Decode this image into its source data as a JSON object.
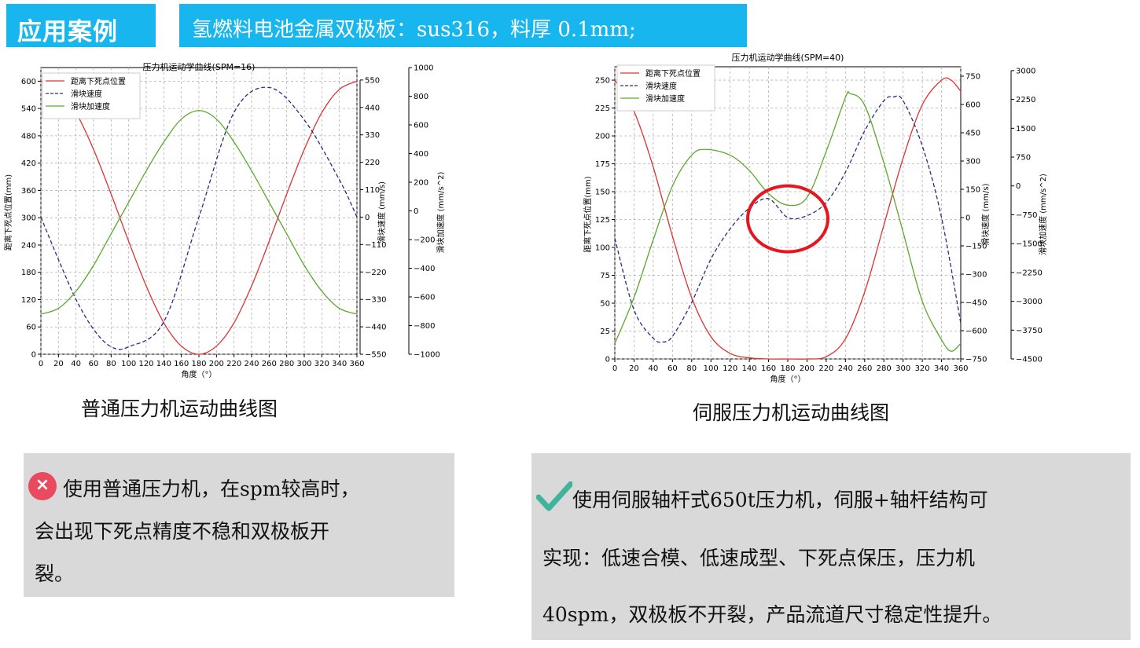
{
  "header": {
    "case_label": "应用案例",
    "title": "氢燃料电池金属双极板：sus316，料厚 0.1mm;"
  },
  "captions": {
    "left": "普通压力机运动曲线图",
    "right": "伺服压力机运动曲线图"
  },
  "notes": {
    "left_lines": [
      "使用普通压力机，在spm较高时，",
      "会出现下死点精度不稳和双极板开",
      "裂。"
    ],
    "right_lines": [
      "使用伺服轴杆式650t压力机，伺服+轴杆结构可",
      "实现：低速合模、低速成型、下死点保压，压力机",
      "40spm，双极板不开裂，产品流道尺寸稳定性提升。"
    ],
    "left_icon": "close-icon",
    "right_icon": "check-icon",
    "left_icon_glyph": "×"
  },
  "colors": {
    "accent_blue": "#17b6ef",
    "note_bg": "#d9d9d9",
    "x_icon": "#ea4a5f",
    "check_icon": "#3fb39c",
    "position_series": "#e03030",
    "velocity_series": "#2a2a8a",
    "acceleration_series": "#5aaa2a",
    "highlight_circle": "#e8141e"
  },
  "chart_data": [
    {
      "type": "line",
      "title": "压力机运动学曲线(SPM=16)",
      "xlabel": "角度（°）",
      "x_ticks": [
        0,
        20,
        40,
        60,
        80,
        100,
        120,
        140,
        160,
        180,
        200,
        220,
        240,
        260,
        280,
        300,
        320,
        340,
        360
      ],
      "xlim": [
        0,
        360
      ],
      "grid": true,
      "legend_position": "top-left",
      "axes": [
        {
          "label": "距离下死点位置(mm)",
          "ylim": [
            0,
            630
          ],
          "ticks": [
            0,
            60,
            120,
            180,
            240,
            300,
            360,
            420,
            480,
            540,
            600
          ]
        },
        {
          "label": "滑块速度 (mm/s)",
          "ylim": [
            -550,
            600
          ],
          "ticks": [
            -550,
            -440,
            -330,
            -220,
            -110,
            0,
            110,
            220,
            330,
            440,
            550
          ]
        },
        {
          "label": "滑块加速度 (mm/s^2)",
          "ylim": [
            -1000,
            1000
          ],
          "ticks": [
            -1000,
            -800,
            -600,
            -400,
            -200,
            0,
            200,
            400,
            600,
            800,
            1000
          ]
        }
      ],
      "series": [
        {
          "name": "距离下死点位置",
          "axis": 0,
          "style": "solid",
          "x": [
            0,
            20,
            40,
            60,
            80,
            100,
            120,
            140,
            160,
            180,
            200,
            220,
            240,
            260,
            280,
            300,
            320,
            340,
            360
          ],
          "values": [
            600,
            582,
            531,
            450,
            352,
            248,
            150,
            69,
            18,
            0,
            18,
            69,
            150,
            248,
            352,
            450,
            531,
            582,
            600
          ]
        },
        {
          "name": "滑块速度",
          "axis": 1,
          "style": "dashed",
          "x": [
            0,
            20,
            40,
            60,
            80,
            100,
            140,
            180,
            220,
            260,
            300,
            340,
            360
          ],
          "values": [
            0,
            -170,
            -330,
            -450,
            -520,
            -520,
            -420,
            0,
            420,
            520,
            390,
            150,
            0
          ]
        },
        {
          "name": "滑块加速度",
          "axis": 2,
          "style": "solid",
          "x": [
            0,
            20,
            40,
            60,
            80,
            100,
            120,
            140,
            160,
            180,
            200,
            220,
            240,
            260,
            280,
            300,
            320,
            340,
            360
          ],
          "values": [
            -720,
            -680,
            -560,
            -380,
            -160,
            60,
            280,
            480,
            640,
            700,
            640,
            480,
            280,
            60,
            -160,
            -380,
            -560,
            -680,
            -720
          ]
        }
      ]
    },
    {
      "type": "line",
      "title": "压力机运动学曲线(SPM=40)",
      "xlabel": "角度（°）",
      "x_ticks": [
        0,
        20,
        40,
        60,
        80,
        100,
        120,
        140,
        160,
        180,
        200,
        220,
        240,
        260,
        280,
        300,
        320,
        340,
        360
      ],
      "xlim": [
        0,
        360
      ],
      "grid": true,
      "legend_position": "top-left",
      "axes": [
        {
          "label": "距离下死点位置(mm)",
          "ylim": [
            0,
            262
          ],
          "ticks": [
            0,
            25,
            50,
            75,
            100,
            125,
            150,
            175,
            200,
            225,
            250
          ]
        },
        {
          "label": "滑块速度 (mm/s)",
          "ylim": [
            -750,
            800
          ],
          "ticks": [
            -750,
            -600,
            -450,
            -300,
            -150,
            0,
            150,
            300,
            450,
            600,
            750
          ]
        },
        {
          "label": "滑块加速度 (mm/s^2)",
          "ylim": [
            -4500,
            3100
          ],
          "ticks": [
            -4500,
            -3750,
            -3000,
            -2250,
            -1500,
            -750,
            0,
            750,
            1500,
            2250,
            3000
          ]
        }
      ],
      "series": [
        {
          "name": "距离下死点位置",
          "axis": 0,
          "style": "solid",
          "x": [
            0,
            20,
            40,
            60,
            80,
            100,
            120,
            140,
            160,
            180,
            200,
            220,
            240,
            260,
            280,
            300,
            320,
            340,
            350,
            360
          ],
          "values": [
            250,
            222,
            172,
            110,
            55,
            20,
            5,
            1,
            0,
            0,
            0,
            2,
            18,
            60,
            120,
            180,
            228,
            250,
            250,
            240
          ]
        },
        {
          "name": "滑块速度",
          "axis": 1,
          "style": "dashed",
          "x": [
            0,
            20,
            40,
            50,
            60,
            80,
            100,
            120,
            140,
            160,
            180,
            200,
            220,
            240,
            260,
            280,
            290,
            300,
            320,
            340,
            360
          ],
          "values": [
            -110,
            -490,
            -640,
            -660,
            -630,
            -450,
            -220,
            -60,
            50,
            100,
            0,
            10,
            80,
            240,
            460,
            620,
            640,
            620,
            380,
            0,
            -560
          ]
        },
        {
          "name": "滑块加速度",
          "axis": 2,
          "style": "solid",
          "x": [
            0,
            20,
            40,
            60,
            80,
            95,
            120,
            140,
            160,
            180,
            200,
            220,
            240,
            245,
            260,
            280,
            300,
            320,
            340,
            350,
            360
          ],
          "values": [
            -4100,
            -2900,
            -1400,
            0,
            800,
            950,
            800,
            400,
            -200,
            -500,
            -300,
            900,
            2300,
            2400,
            2100,
            600,
            -1200,
            -3000,
            -4000,
            -4300,
            -4100
          ]
        }
      ]
    }
  ]
}
